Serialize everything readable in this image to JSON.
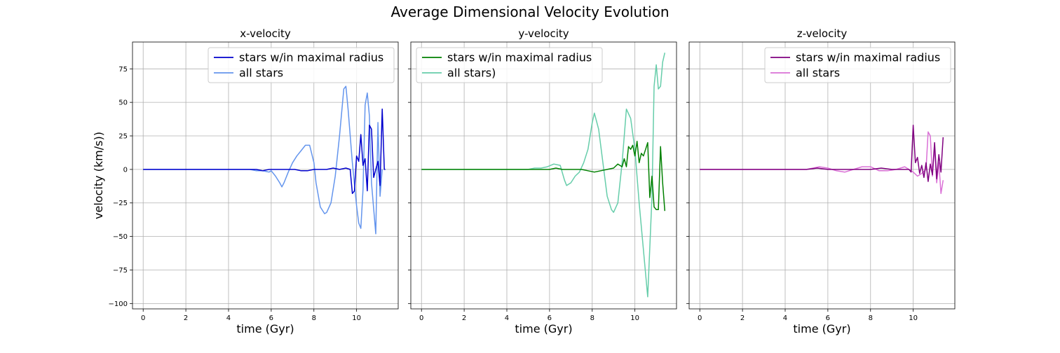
{
  "figure": {
    "suptitle": "Average Dimensional Velocity Evolution"
  },
  "chart_data": [
    {
      "type": "line",
      "title": "x-velocity",
      "xlabel": "time (Gyr)",
      "ylabel": "velocity (km/s))",
      "xlim": [
        -0.5,
        11.95
      ],
      "ylim": [
        -104,
        95
      ],
      "xticks": [
        0,
        2,
        4,
        6,
        8,
        10
      ],
      "yticks": [
        -100,
        -75,
        -50,
        -25,
        0,
        25,
        50,
        75
      ],
      "grid": true,
      "legend": "upper right",
      "series": [
        {
          "name": "stars w/in maximal radius",
          "color": "#0000cd",
          "x": [
            0,
            0.5,
            1,
            1.5,
            2,
            2.5,
            3,
            3.5,
            4,
            4.5,
            5,
            5.3,
            5.6,
            5.9,
            6.2,
            6.5,
            6.8,
            7.1,
            7.4,
            7.7,
            8.0,
            8.3,
            8.6,
            8.9,
            9.2,
            9.5,
            9.7,
            9.8,
            9.9,
            10.0,
            10.1,
            10.2,
            10.3,
            10.4,
            10.5,
            10.6,
            10.7,
            10.8,
            10.9,
            11.0,
            11.1,
            11.2,
            11.3,
            11.35
          ],
          "y": [
            0,
            0,
            0,
            0,
            0,
            0,
            0,
            0,
            0,
            0,
            0,
            0,
            -1,
            0,
            0,
            0,
            0,
            0,
            -1,
            -1,
            0,
            0,
            0,
            1,
            0,
            1,
            0,
            -18,
            -16,
            10,
            6,
            26,
            3,
            8,
            -16,
            33,
            30,
            -6,
            0,
            6,
            -12,
            45,
            0,
            0
          ]
        },
        {
          "name": "all stars",
          "color": "#6495ed",
          "x": [
            0,
            0.5,
            1,
            1.5,
            2,
            2.5,
            3,
            3.5,
            4,
            4.5,
            5,
            5.3,
            5.6,
            5.9,
            6.0,
            6.2,
            6.4,
            6.5,
            6.6,
            6.8,
            7.0,
            7.2,
            7.4,
            7.6,
            7.8,
            8.0,
            8.1,
            8.3,
            8.5,
            8.6,
            8.8,
            9.0,
            9.2,
            9.4,
            9.5,
            9.6,
            9.8,
            10.0,
            10.1,
            10.2,
            10.3,
            10.4,
            10.5,
            10.6,
            10.7,
            10.9,
            11.0,
            11.1,
            11.2
          ],
          "y": [
            0,
            0,
            0,
            0,
            0,
            0,
            0,
            0,
            0,
            0,
            0,
            -1,
            -1,
            -2,
            -1,
            -5,
            -10,
            -13,
            -10,
            -2,
            5,
            10,
            14,
            18,
            18,
            5,
            -10,
            -28,
            -33,
            -32,
            -25,
            -5,
            25,
            60,
            62,
            45,
            5,
            -27,
            -40,
            -44,
            -15,
            48,
            57,
            40,
            -10,
            -48,
            35,
            -20,
            0
          ]
        }
      ]
    },
    {
      "type": "line",
      "title": "y-velocity",
      "xlabel": "time (Gyr)",
      "ylabel": "",
      "xlim": [
        -0.5,
        11.95
      ],
      "ylim": [
        -104,
        95
      ],
      "xticks": [
        0,
        2,
        4,
        6,
        8,
        10
      ],
      "grid": true,
      "legend": "upper left",
      "series": [
        {
          "name": "stars w/in maximal radius",
          "color": "#008000",
          "x": [
            0,
            0.5,
            1,
            1.5,
            2,
            2.5,
            3,
            3.5,
            4,
            4.5,
            5,
            5.5,
            6,
            6.3,
            6.6,
            6.9,
            7.2,
            7.5,
            7.8,
            8.1,
            8.4,
            8.7,
            9.0,
            9.2,
            9.4,
            9.5,
            9.6,
            9.7,
            9.8,
            9.9,
            10.0,
            10.1,
            10.2,
            10.3,
            10.4,
            10.5,
            10.6,
            10.7,
            10.8,
            10.9,
            11.0,
            11.1,
            11.2,
            11.3,
            11.4
          ],
          "y": [
            0,
            0,
            0,
            0,
            0,
            0,
            0,
            0,
            0,
            0,
            0,
            0,
            0,
            1,
            0,
            0,
            0,
            0,
            -1,
            -2,
            -1,
            0,
            1,
            4,
            2,
            8,
            2,
            17,
            15,
            18,
            10,
            21,
            5,
            12,
            10,
            15,
            20,
            -21,
            -5,
            -28,
            -30,
            -30,
            17,
            -10,
            -31
          ]
        },
        {
          "name": "all stars)",
          "color": "#66cdaa",
          "x": [
            0,
            0.5,
            1,
            1.5,
            2,
            2.5,
            3,
            3.5,
            4,
            4.5,
            5,
            5.3,
            5.6,
            5.9,
            6.2,
            6.5,
            6.7,
            6.8,
            7.0,
            7.2,
            7.4,
            7.6,
            7.8,
            8.0,
            8.1,
            8.3,
            8.5,
            8.7,
            8.9,
            9.0,
            9.2,
            9.4,
            9.6,
            9.8,
            10.0,
            10.2,
            10.4,
            10.6,
            10.8,
            10.9,
            11.0,
            11.1,
            11.2,
            11.3,
            11.4
          ],
          "y": [
            0,
            0,
            0,
            0,
            0,
            0,
            0,
            0,
            0,
            0,
            0,
            1,
            1,
            2,
            4,
            3,
            -8,
            -12,
            -10,
            -5,
            -2,
            5,
            15,
            35,
            42,
            30,
            5,
            -20,
            -30,
            -32,
            -25,
            5,
            45,
            38,
            15,
            -25,
            -60,
            -95,
            -20,
            62,
            78,
            60,
            62,
            80,
            87
          ]
        }
      ]
    },
    {
      "type": "line",
      "title": "z-velocity",
      "xlabel": "time (Gyr)",
      "ylabel": "",
      "xlim": [
        -0.5,
        11.95
      ],
      "ylim": [
        -104,
        95
      ],
      "xticks": [
        0,
        2,
        4,
        6,
        8,
        10
      ],
      "grid": true,
      "legend": "upper right",
      "series": [
        {
          "name": "stars w/in maximal radius",
          "color": "#800080",
          "x": [
            0,
            1,
            2,
            3,
            4,
            5,
            5.5,
            6,
            6.5,
            7,
            7.5,
            8,
            8.5,
            9,
            9.5,
            9.8,
            9.9,
            10.0,
            10.1,
            10.2,
            10.3,
            10.4,
            10.5,
            10.6,
            10.7,
            10.8,
            10.9,
            11.0,
            11.1,
            11.2,
            11.3,
            11.4
          ],
          "y": [
            0,
            0,
            0,
            0,
            0,
            0,
            1,
            0,
            0,
            0,
            0,
            0,
            1,
            0,
            0,
            0,
            -2,
            33,
            5,
            9,
            -3,
            3,
            -6,
            5,
            -9,
            4,
            -4,
            20,
            -7,
            11,
            -2,
            24
          ]
        },
        {
          "name": "all stars",
          "color": "#da70d6",
          "x": [
            0,
            1,
            2,
            3,
            4,
            5,
            5.3,
            5.6,
            6.0,
            6.4,
            6.8,
            7.2,
            7.6,
            8.0,
            8.4,
            8.8,
            9.2,
            9.6,
            9.9,
            10.0,
            10.2,
            10.4,
            10.6,
            10.7,
            10.8,
            10.9,
            11.0,
            11.1,
            11.2,
            11.3,
            11.4
          ],
          "y": [
            0,
            0,
            0,
            0,
            0,
            0,
            1,
            2,
            1,
            -1,
            -2,
            0,
            2,
            2,
            -1,
            -1,
            0,
            2,
            -1,
            -2,
            -5,
            -3,
            0,
            28,
            25,
            -5,
            17,
            -10,
            5,
            -18,
            -8
          ]
        }
      ]
    }
  ]
}
